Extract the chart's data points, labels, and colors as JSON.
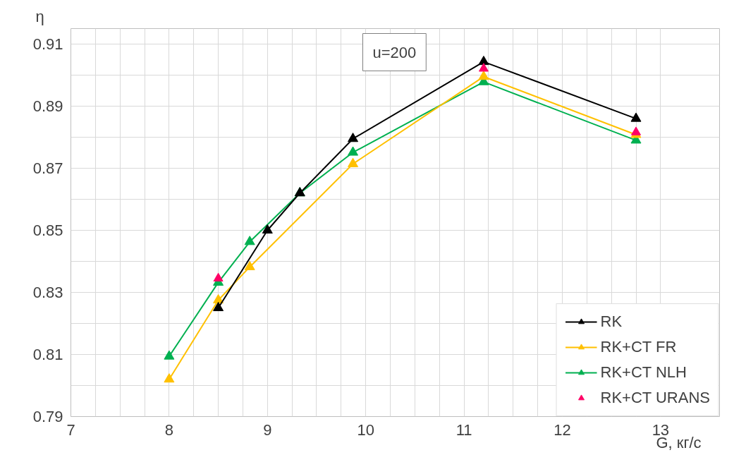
{
  "chart_data": {
    "type": "line",
    "xlabel": "G, кг/с",
    "ylabel": "η",
    "annotations": [
      "u=200"
    ],
    "xlim": [
      7,
      13.6
    ],
    "ylim": [
      0.79,
      0.915
    ],
    "xticks": [
      7,
      8,
      9,
      10,
      11,
      12,
      13
    ],
    "yticks": [
      {
        "value": 0.79,
        "label": "0.79"
      },
      {
        "value": 0.81,
        "label": "0.81"
      },
      {
        "value": 0.83,
        "label": "0.83"
      },
      {
        "value": 0.85,
        "label": "0.85"
      },
      {
        "value": 0.87,
        "label": "0.87"
      },
      {
        "value": 0.89,
        "label": "0.89"
      },
      {
        "value": 0.91,
        "label": "0.91"
      }
    ],
    "grid": true,
    "legend": "bottom right",
    "marker": "triangle",
    "series": [
      {
        "name": "RK",
        "color": "#000000",
        "x": [
          8.5,
          9.0,
          9.33,
          9.87,
          11.2,
          12.75
        ],
        "values": [
          0.825,
          0.85,
          0.862,
          0.8795,
          0.9043,
          0.886
        ]
      },
      {
        "name": "RK+CT FR",
        "color": "#ffc000",
        "x": [
          8.0,
          8.5,
          8.82,
          9.87,
          11.2,
          12.75
        ],
        "values": [
          0.802,
          0.8275,
          0.8382,
          0.8714,
          0.8995,
          0.8808
        ]
      },
      {
        "name": "RK+CT NLH",
        "color": "#00b050",
        "x": [
          8.0,
          8.5,
          8.82,
          9.33,
          9.87,
          11.2,
          12.75
        ],
        "values": [
          0.8094,
          0.8332,
          0.8463,
          0.862,
          0.8751,
          0.8978,
          0.879
        ]
      },
      {
        "name": "RK+CT URANS",
        "type": "scatter",
        "color": "#ff0066",
        "x": [
          8.5,
          11.2,
          12.75
        ],
        "values": [
          0.8345,
          0.9021,
          0.8816
        ]
      }
    ]
  }
}
